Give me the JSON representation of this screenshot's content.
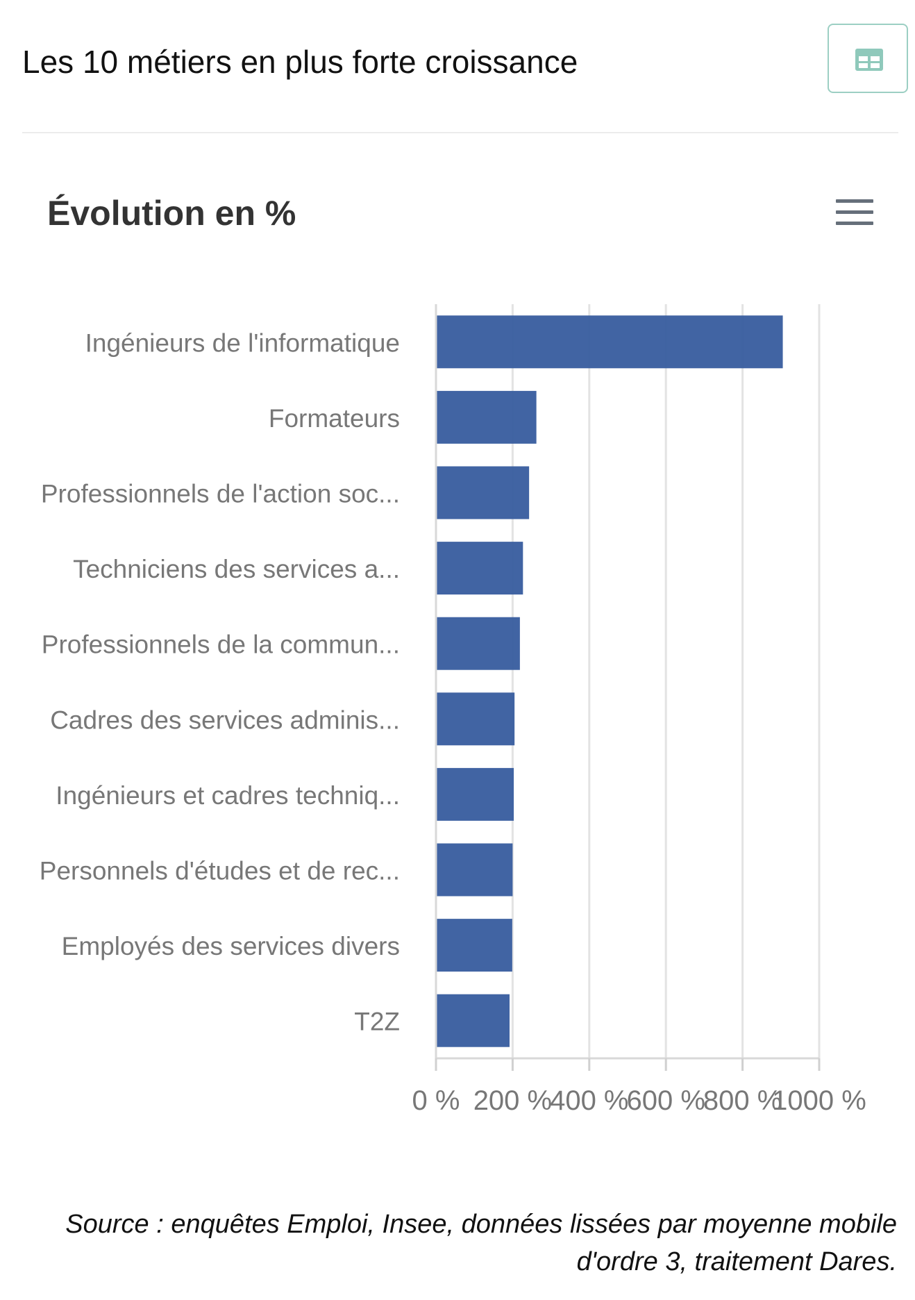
{
  "header": {
    "title": "Les 10 métiers en plus forte croissance",
    "table_button_icon": "table-icon"
  },
  "chart": {
    "menu_icon": "hamburger-menu-icon"
  },
  "source": {
    "line1": "Source : enquêtes Emploi, Insee, données lissées par moyenne mobile",
    "line2": "d'ordre 3, traitement Dares."
  },
  "colors": {
    "bar": "#3b5fa0",
    "axis_label": "#777777",
    "grid": "#e3e3e3",
    "table_icon": "#8fc9bb"
  },
  "chart_data": {
    "type": "bar",
    "orientation": "horizontal",
    "title": "Évolution en %",
    "categories": [
      "Ingénieurs de l'informatique",
      "Formateurs",
      "Professionnels de l'action soc...",
      "Techniciens des services a...",
      "Professionnels de la commun...",
      "Cadres des services adminis...",
      "Ingénieurs et cadres techniq...",
      "Personnels d'études et de rec...",
      "Employés des services divers",
      "T2Z"
    ],
    "values": [
      905,
      262,
      243,
      227,
      219,
      205,
      203,
      200,
      199,
      192
    ],
    "xlim": [
      0,
      1000
    ],
    "ticks": [
      0,
      200,
      400,
      600,
      800,
      1000
    ],
    "tick_labels": [
      "0 %",
      "200 %",
      "400 %",
      "600 %",
      "800 %",
      "1000 %"
    ],
    "grid": true,
    "legend": "none"
  }
}
